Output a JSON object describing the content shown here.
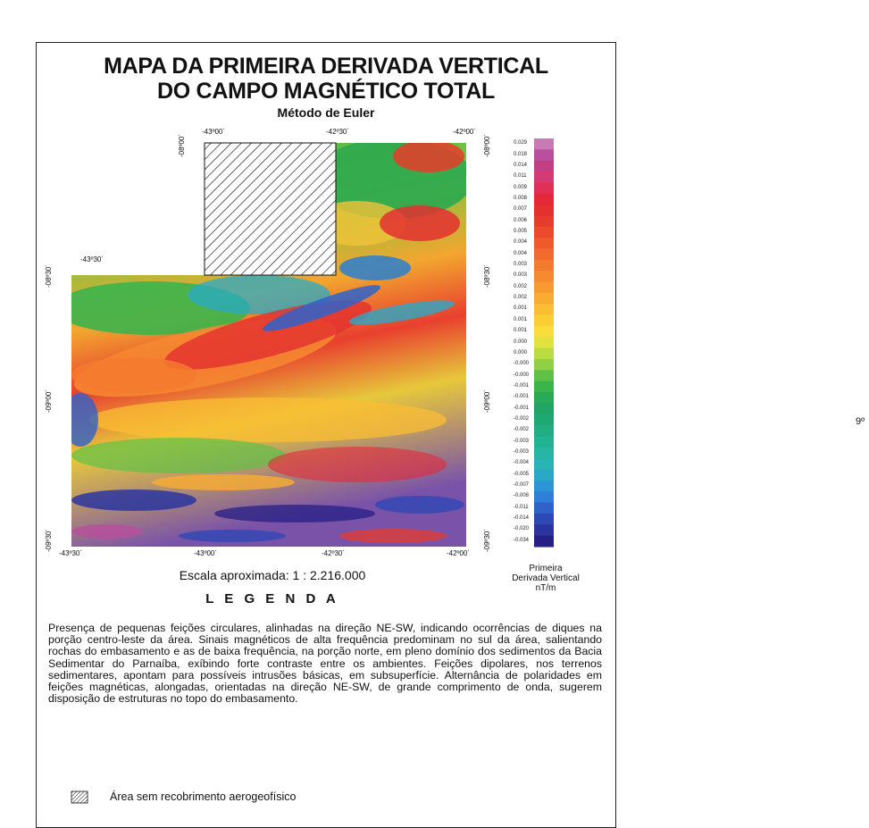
{
  "title_line1": "MAPA DA PRIMEIRA DERIVADA VERTICAL",
  "title_line2": "DO CAMPO MAGNÉTICO TOTAL",
  "subtitle": "Método de Euler",
  "coords": {
    "top_lon_1": "-43º00´",
    "top_lon_2": "-42º30´",
    "top_lon_3": "-42º00´",
    "mid_lon": "-43º30´",
    "bottom_lon": [
      "-43º30´",
      "-43º00´",
      "-42º30´",
      "-42º00´"
    ],
    "left_lat": [
      "-08º00´",
      "-08º30´",
      "-09º00´",
      "-09º30´"
    ],
    "right_lat": [
      "-08º00´",
      "-08º30´",
      "-09º00´",
      "-09º30´"
    ]
  },
  "colorbar": {
    "values": [
      "0.029",
      "0.018",
      "0.014",
      "0.011",
      "0.009",
      "0.008",
      "0.007",
      "0.006",
      "0.005",
      "0.004",
      "0.004",
      "0.003",
      "0.003",
      "0.002",
      "0.002",
      "0.001",
      "0.001",
      "0.001",
      "0.000",
      "0.000",
      "-0.000",
      "-0.000",
      "-0.001",
      "-0.001",
      "-0.001",
      "-0.002",
      "-0.002",
      "-0.003",
      "-0.003",
      "-0.004",
      "-0.005",
      "-0.007",
      "-0.008",
      "-0.011",
      "-0.014",
      "-0.020",
      "-0.034"
    ],
    "colors": [
      "#c97ab5",
      "#b94f9e",
      "#c23f86",
      "#d63a72",
      "#e03055",
      "#e42a38",
      "#e33030",
      "#e73b2c",
      "#ec4a2c",
      "#ef5b2d",
      "#f26a2e",
      "#f47a2f",
      "#f68a30",
      "#f79b31",
      "#f9ac32",
      "#fbbd33",
      "#fccd35",
      "#fadd3a",
      "#e2e23e",
      "#b9dc40",
      "#8fd045",
      "#5fc148",
      "#3cb44c",
      "#28aa57",
      "#21a564",
      "#1fa972",
      "#20ae82",
      "#22b392",
      "#25b6a4",
      "#29b5b6",
      "#2aa9c7",
      "#2b95d6",
      "#2d7fd8",
      "#2f63c9",
      "#2f49b4",
      "#2b35a0",
      "#261f86"
    ],
    "title": "Primeira\nDerivada Vertical\nnT/m"
  },
  "scale_text": "Escala aproximada: 1 : 2.216.000",
  "legend_title": "L E G E N D A",
  "description": "Presença de pequenas feições circulares, alinhadas na direção NE-SW, indicando ocorrências de diques na porção centro-leste da área. Sinais magnéticos de alta frequência predominam no sul da área, salientando rochas do embasamento e as de baixa frequência, na porção norte, em pleno domínio dos sedimentos da Bacia Sedimentar do Parnaíba, exíbindo forte contraste entre os ambientes. Feições dipolares, nos terrenos sedimentares, apontam para possíveis intrusões básicas, em subsuperfície. Alternância de polaridades em feições magnéticas, alongadas, orientadas na direção NE-SW, de grande comprimento de onda, sugerem disposição de estruturas no topo do embasamento.",
  "hatch_label": "Área sem recobrimento aerogeofísico",
  "edge_fragment": "9º"
}
